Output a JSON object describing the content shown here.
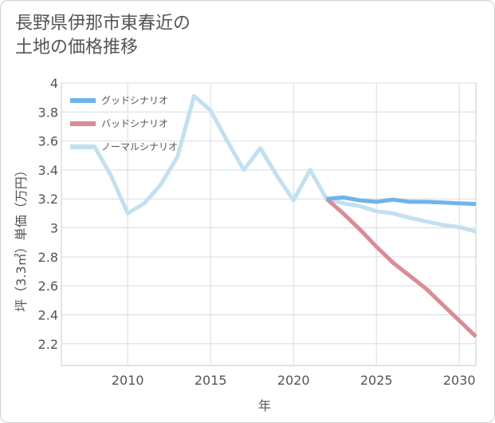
{
  "chart_data": {
    "type": "line",
    "title_lines": [
      "長野県伊那市東春近の",
      "土地の価格推移"
    ],
    "xlabel": "年",
    "ylabel": "坪（3.3㎡）単価（万円）",
    "xlim": [
      2006,
      2031
    ],
    "ylim": [
      2.05,
      4.0
    ],
    "x_ticks": [
      2010,
      2015,
      2020,
      2025,
      2030
    ],
    "x_tick_labels": [
      "2010",
      "2015",
      "2020",
      "2025",
      "2030"
    ],
    "y_ticks": [
      2.2,
      2.4,
      2.6,
      2.8,
      3.0,
      3.2,
      3.4,
      3.6,
      3.8,
      4.0
    ],
    "y_tick_labels": [
      "2.2",
      "2.4",
      "2.6",
      "2.8",
      "3",
      "3.2",
      "3.4",
      "3.6",
      "3.8",
      "4"
    ],
    "grid": true,
    "legend_position": "top-left",
    "series": [
      {
        "name": "グッドシナリオ",
        "color": "#6db4ea",
        "x": [
          2022,
          2023,
          2024,
          2025,
          2026,
          2027,
          2028,
          2029,
          2030,
          2031
        ],
        "y": [
          3.2,
          3.21,
          3.19,
          3.18,
          3.195,
          3.18,
          3.18,
          3.175,
          3.17,
          3.165
        ]
      },
      {
        "name": "バッドシナリオ",
        "color": "#dd8a94",
        "x": [
          2022,
          2023,
          2024,
          2025,
          2026,
          2027,
          2028,
          2029,
          2030,
          2031
        ],
        "y": [
          3.2,
          3.1,
          2.99,
          2.87,
          2.76,
          2.67,
          2.58,
          2.47,
          2.36,
          2.25
        ]
      },
      {
        "name": "ノーマルシナリオ",
        "color": "#c2e0ef",
        "x": [
          2008,
          2009,
          2010,
          2011,
          2012,
          2013,
          2014,
          2015,
          2016,
          2017,
          2018,
          2019,
          2020,
          2021,
          2022,
          2023,
          2024,
          2025,
          2026,
          2027,
          2028,
          2029,
          2030,
          2031
        ],
        "y": [
          3.56,
          3.36,
          3.1,
          3.17,
          3.3,
          3.49,
          3.91,
          3.81,
          3.6,
          3.4,
          3.55,
          3.36,
          3.19,
          3.4,
          3.2,
          3.17,
          3.15,
          3.115,
          3.1,
          3.07,
          3.045,
          3.02,
          3.005,
          2.975
        ]
      }
    ]
  }
}
